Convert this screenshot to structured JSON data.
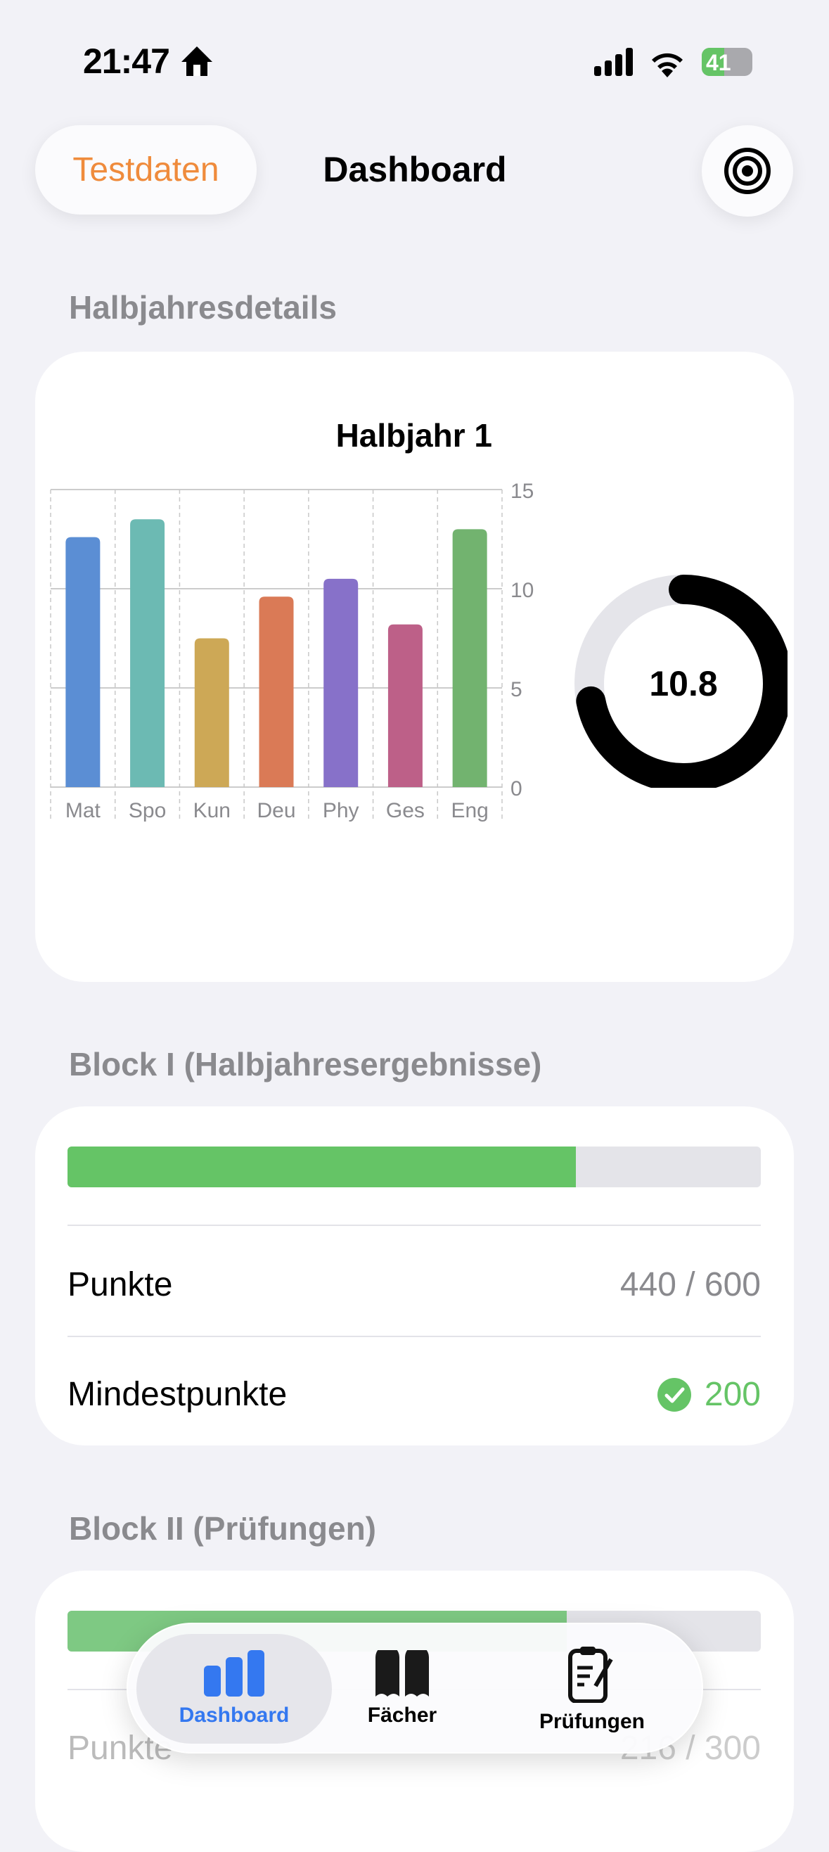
{
  "status_bar": {
    "time": "21:47",
    "battery": "41"
  },
  "nav": {
    "left_button": "Testdaten",
    "title": "Dashboard",
    "right_icon": "target-icon"
  },
  "halbjahr_section": {
    "header": "Halbjahresdetails"
  },
  "chart_data": {
    "type": "bar",
    "title": "Halbjahr 1",
    "categories": [
      "Mat",
      "Spo",
      "Kun",
      "Deu",
      "Phy",
      "Ges",
      "Eng"
    ],
    "values": [
      12.6,
      13.5,
      7.5,
      9.6,
      10.5,
      8.2,
      13.0
    ],
    "colors": [
      "#5b8ed4",
      "#6cbab3",
      "#cda856",
      "#da7a56",
      "#8771c9",
      "#bd6088",
      "#72b36f"
    ],
    "ylim": [
      0,
      15
    ],
    "yticks": [
      "0",
      "5",
      "10",
      "15"
    ],
    "grid": true
  },
  "average_ring": {
    "value": "10.8",
    "fraction": 0.72,
    "color": "#000000",
    "track_color": "#e5e5ea"
  },
  "block1": {
    "header": "Block I (Halbjahresergebnisse)",
    "progress": 0.733,
    "progress_color": "#65c466",
    "rows": [
      {
        "label": "Punkte",
        "value": "440 / 600"
      },
      {
        "label": "Mindestpunkte",
        "value": "200",
        "status_color": "#65c466"
      }
    ]
  },
  "block2": {
    "header": "Block II (Prüfungen)",
    "progress": 0.72,
    "rows": [
      {
        "label": "Punkte",
        "value": "216 / 300"
      }
    ]
  },
  "tabbar": {
    "tabs": [
      {
        "label": "Dashboard",
        "selected": true
      },
      {
        "label": "Fächer"
      },
      {
        "label": "Prüfungen"
      }
    ],
    "accent": "#3478f0"
  }
}
